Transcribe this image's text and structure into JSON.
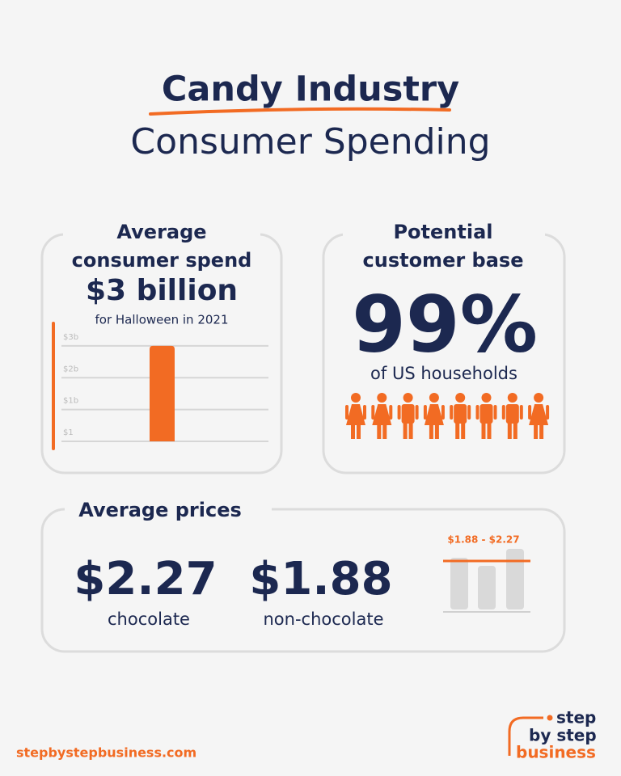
{
  "header": {
    "title": "Candy Industry",
    "subtitle": "Consumer Spending"
  },
  "spend_card": {
    "title_lines": [
      "Average",
      "consumer spend"
    ],
    "value": "$3 billion",
    "caption": "for Halloween in 2021",
    "chart": {
      "ylim": [
        0,
        3.2
      ],
      "yticks": [
        {
          "value": 3,
          "label": "$3b"
        },
        {
          "value": 2,
          "label": "$2b"
        },
        {
          "value": 1,
          "label": "$1b"
        },
        {
          "value": 1e-09,
          "label": "$1"
        }
      ],
      "values": [
        3
      ],
      "color": "#f26b23"
    }
  },
  "customer_card": {
    "title_lines": [
      "Potential",
      "customer base"
    ],
    "value": "99%",
    "caption": "of US households"
  },
  "prices_card": {
    "title": "Average prices",
    "items": [
      {
        "value": "$2.27",
        "label": "chocolate"
      },
      {
        "value": "$1.88",
        "label": "non-chocolate"
      }
    ],
    "range_label": "$1.88 - $2.27"
  },
  "footer": {
    "url": "stepbystepbusiness.com",
    "logo_lines": [
      "step",
      "by step",
      "business"
    ]
  }
}
